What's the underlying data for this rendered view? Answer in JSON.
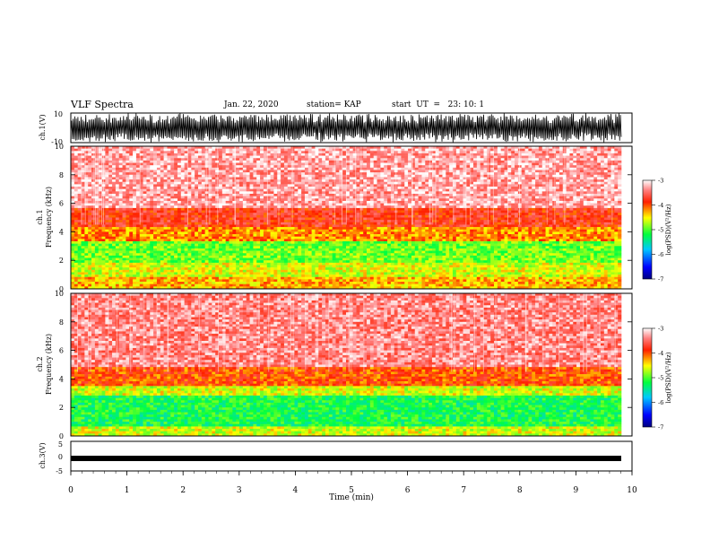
{
  "header": {
    "title": "VLF Spectra",
    "date": "Jan. 22, 2020",
    "station": "station= KAP",
    "start_ut": "start  UT  =   23: 10: 1"
  },
  "chart_data": [
    {
      "type": "line",
      "panel": "waveform-ch1",
      "ylabel": "ch.1(V)",
      "ylim": [
        -10,
        10
      ],
      "yticks": [
        "10",
        "-10"
      ],
      "xlim": [
        0,
        10
      ],
      "description_values": "dense oscillating waveform approx between -9 and 9 V"
    },
    {
      "type": "heatmap",
      "panel": "spectrogram-ch1",
      "ylabel": "ch.1\nFrequency (kHz)",
      "ylabel_top": "ch.1",
      "ylabel_main": "Frequency  (kHz)",
      "ylim": [
        0,
        10
      ],
      "yticks": [
        "0",
        "2",
        "4",
        "6",
        "8",
        "10"
      ],
      "xlim": [
        0,
        9.83
      ],
      "colorbar": {
        "label": "log(PSD)(V²/Hz)",
        "ticks": [
          "-3",
          "-4",
          "-5",
          "-6",
          "-7"
        ],
        "range": [
          -7,
          -3
        ]
      },
      "bands": [
        {
          "from": 0,
          "to": 0.9,
          "level": -4.3
        },
        {
          "from": 0.9,
          "to": 1.8,
          "level": -4.6
        },
        {
          "from": 1.8,
          "to": 3.4,
          "level": -4.9
        },
        {
          "from": 3.4,
          "to": 4.4,
          "level": -4.2
        },
        {
          "from": 4.4,
          "to": 5.6,
          "level": -3.8
        },
        {
          "from": 5.6,
          "to": 10,
          "level": -3.3
        }
      ]
    },
    {
      "type": "heatmap",
      "panel": "spectrogram-ch2",
      "ylabel_top": "ch.2",
      "ylabel_main": "Frequency  (kHz)",
      "ylim": [
        0,
        10
      ],
      "yticks": [
        "0",
        "2",
        "4",
        "6",
        "8",
        "10"
      ],
      "xlim": [
        0,
        9.83
      ],
      "colorbar": {
        "label": "log(PSD)(V²/Hz)",
        "ticks": [
          "-3",
          "-4",
          "-5",
          "-6",
          "-7"
        ],
        "range": [
          -7,
          -3
        ]
      },
      "bands": [
        {
          "from": 0,
          "to": 0.6,
          "level": -4.6
        },
        {
          "from": 0.6,
          "to": 2.9,
          "level": -5.2
        },
        {
          "from": 2.9,
          "to": 3.5,
          "level": -4.6
        },
        {
          "from": 3.5,
          "to": 4.8,
          "level": -4.0
        },
        {
          "from": 4.8,
          "to": 10,
          "level": -3.4
        }
      ]
    },
    {
      "type": "line",
      "panel": "waveform-ch3",
      "ylabel": "ch.3(V)",
      "ylim": [
        -5,
        5
      ],
      "yticks": [
        "5",
        "0",
        "-5"
      ],
      "xlim": [
        0,
        10
      ],
      "xlabel": "Time  (min)",
      "xticks": [
        "0",
        "1",
        "2",
        "3",
        "4",
        "5",
        "6",
        "7",
        "8",
        "9",
        "10"
      ],
      "description_values": "flat thick band near -1 V"
    }
  ]
}
